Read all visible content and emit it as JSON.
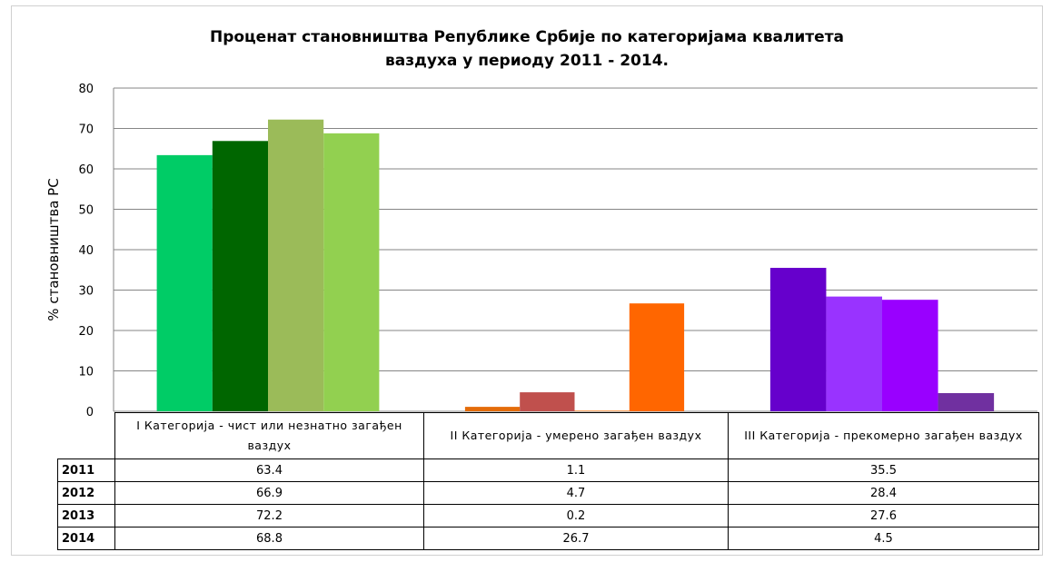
{
  "chart_data": {
    "type": "bar",
    "title": [
      "Проценат становништва Републике Србије по категоријама квалитета",
      "ваздуха у периоду 2011 - 2014."
    ],
    "y_label": "% становништва РС",
    "categories": [
      "I  Категорија -    чист или незнатно загађен ваздух",
      "II   Категорија -    умерено загађен ваздух",
      "III   Категорија - прекомерно загађен ваздух"
    ],
    "series": [
      {
        "name": "2011",
        "colors": [
          "#00cc66",
          "#e46c0a",
          "#6600cc"
        ],
        "values": [
          63.4,
          1.1,
          35.5
        ]
      },
      {
        "name": "2012",
        "colors": [
          "#006600",
          "#c0504d",
          "#9933ff"
        ],
        "values": [
          66.9,
          4.7,
          28.4
        ]
      },
      {
        "name": "2013",
        "colors": [
          "#9bbb59",
          "#f79646",
          "#9900ff"
        ],
        "values": [
          72.2,
          0.2,
          27.6
        ]
      },
      {
        "name": "2014",
        "colors": [
          "#92d050",
          "#ff6600",
          "#7030a0"
        ],
        "values": [
          68.8,
          26.7,
          4.5
        ]
      }
    ],
    "ylim": [
      0,
      80
    ],
    "yticks": [
      0,
      10,
      20,
      30,
      40,
      50,
      60,
      70,
      80
    ],
    "grid": true
  }
}
